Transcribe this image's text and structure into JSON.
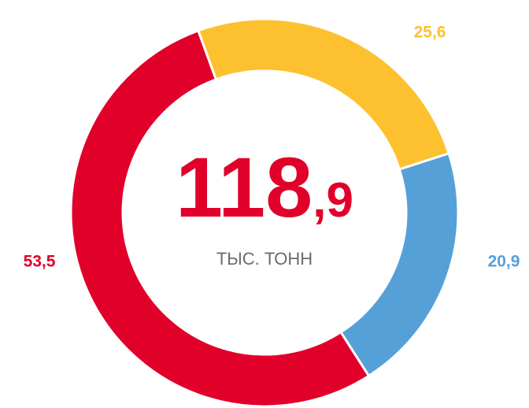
{
  "chart_data": {
    "type": "donut",
    "categories": [
      null,
      null,
      null
    ],
    "values": [
      25.6,
      20.9,
      53.5
    ],
    "value_labels": [
      "25,6",
      "20,9",
      "53,5"
    ],
    "colors": [
      "#fdc130",
      "#56a0d8",
      "#e0002a"
    ],
    "center_value": {
      "integer": "118",
      "fraction": ",9"
    },
    "center_unit": "ТЫС. ТОНН"
  }
}
